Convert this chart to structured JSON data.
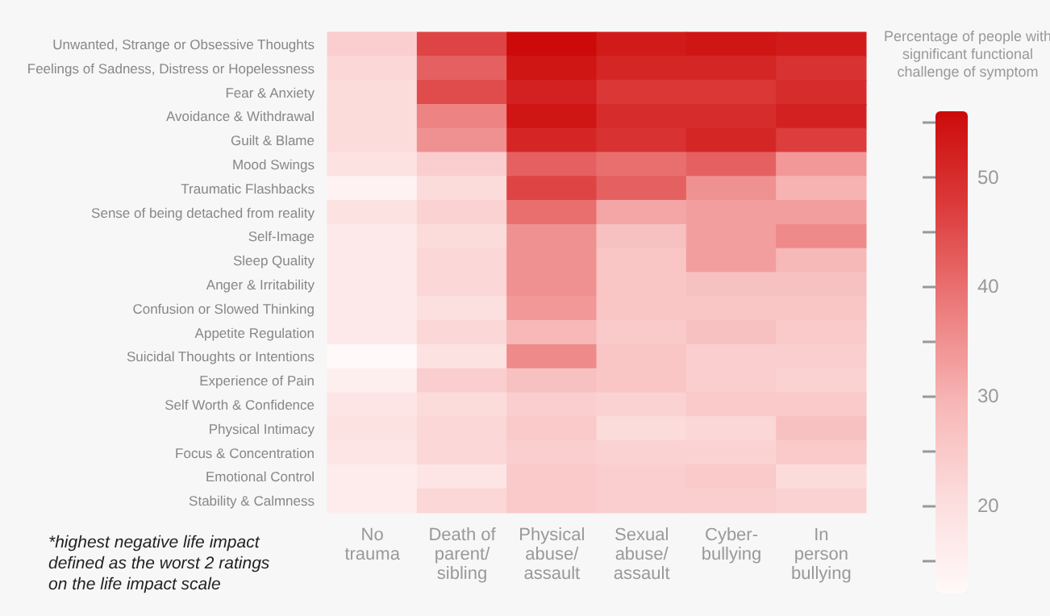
{
  "chart_data": {
    "type": "heatmap",
    "categories": [
      "No trauma",
      "Death of parent/ sibling",
      "Physical abuse/ assault",
      "Sexual abuse/ assault",
      "Cyber-bullying",
      "In person bullying"
    ],
    "y_categories": [
      "Unwanted, Strange or Obsessive Thoughts",
      "Feelings of Sadness, Distress or Hopelessness",
      "Fear & Anxiety",
      "Avoidance & Withdrawal",
      "Guilt & Blame",
      "Mood Swings",
      "Traumatic Flashbacks",
      "Sense of being detached from reality",
      "Self-Image",
      "Sleep Quality",
      "Anger & Irritability",
      "Confusion or Slowed Thinking",
      "Appetite Regulation",
      "Suicidal Thoughts or Intentions",
      "Experience of Pain",
      "Self Worth & Confidence",
      "Physical Intimacy",
      "Focus & Concentration",
      "Emotional Control",
      "Stability & Calmness"
    ],
    "cells": [
      [
        24,
        46,
        56,
        53,
        54,
        53
      ],
      [
        22,
        42,
        54,
        51,
        51,
        49
      ],
      [
        21,
        45,
        52,
        48,
        48,
        50
      ],
      [
        21,
        37,
        54,
        50,
        50,
        52
      ],
      [
        21,
        35,
        51,
        49,
        51,
        47
      ],
      [
        19,
        24,
        42,
        40,
        42,
        34
      ],
      [
        14,
        21,
        46,
        42,
        35,
        30
      ],
      [
        19,
        23,
        40,
        32,
        33,
        33
      ],
      [
        17,
        21,
        35,
        27,
        33,
        36
      ],
      [
        17,
        22,
        35,
        26,
        33,
        29
      ],
      [
        17,
        22,
        35,
        26,
        27,
        27
      ],
      [
        17,
        20,
        34,
        26,
        26,
        26
      ],
      [
        17,
        22,
        29,
        25,
        27,
        25
      ],
      [
        12,
        19,
        36,
        26,
        24,
        24
      ],
      [
        15,
        24,
        27,
        26,
        24,
        23
      ],
      [
        18,
        21,
        24,
        23,
        25,
        25
      ],
      [
        19,
        22,
        25,
        21,
        22,
        27
      ],
      [
        18,
        22,
        24,
        23,
        23,
        25
      ],
      [
        16,
        18,
        25,
        24,
        25,
        21
      ],
      [
        16,
        22,
        25,
        24,
        24,
        23
      ]
    ],
    "clim": [
      12,
      56
    ],
    "cticks": [
      {
        "value": 15,
        "label": null
      },
      20,
      {
        "value": 25,
        "label": null
      },
      30,
      {
        "value": 35,
        "label": null
      },
      40,
      {
        "value": 45,
        "label": null
      },
      50,
      {
        "value": 55,
        "label": null
      }
    ],
    "clabel": "Percentage of people with significant functional challenge of symptom",
    "annotations": [
      "*highest negative life impact defined as the worst 2 ratings on the life impact scale"
    ]
  }
}
